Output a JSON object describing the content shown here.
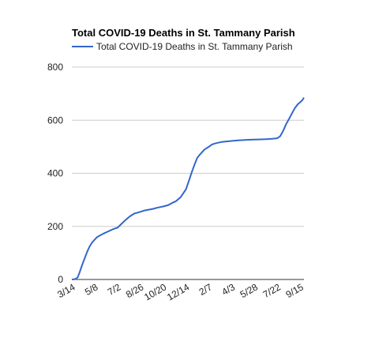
{
  "chart_data": {
    "type": "line",
    "title": "Total COVID-19 Deaths in St. Tammany Parish",
    "xlabel": "",
    "ylabel": "",
    "ylim": [
      0,
      800
    ],
    "yticks": [
      0,
      200,
      400,
      600,
      800
    ],
    "xticks": [
      "3/14",
      "5/8",
      "7/2",
      "8/26",
      "10/20",
      "12/14",
      "2/7",
      "4/3",
      "5/28",
      "7/22",
      "9/15"
    ],
    "grid": true,
    "legend": "top-left",
    "series": [
      {
        "name": "Total COVID-19 Deaths in St. Tammany Parish",
        "color": "#3366cc",
        "x": [
          "3/14",
          "3/20",
          "3/24",
          "3/28",
          "4/2",
          "4/8",
          "4/14",
          "4/20",
          "4/26",
          "5/2",
          "5/8",
          "5/14",
          "5/20",
          "5/26",
          "6/1",
          "6/8",
          "6/15",
          "6/22",
          "7/2",
          "7/12",
          "7/22",
          "8/1",
          "8/11",
          "8/26",
          "9/5",
          "9/15",
          "9/25",
          "10/5",
          "10/20",
          "11/1",
          "11/10",
          "11/20",
          "12/1",
          "12/14",
          "12/21",
          "12/28",
          "1/4",
          "1/10",
          "1/16",
          "1/22",
          "1/28",
          "2/7",
          "2/14",
          "2/21",
          "3/1",
          "3/10",
          "3/20",
          "4/3",
          "4/20",
          "5/10",
          "5/28",
          "6/15",
          "7/1",
          "7/10",
          "7/22",
          "7/29",
          "8/5",
          "8/12",
          "8/19",
          "8/26",
          "9/2",
          "9/9",
          "9/15",
          "9/20",
          "9/24"
        ],
        "values": [
          0,
          1,
          3,
          8,
          28,
          55,
          80,
          105,
          125,
          140,
          150,
          160,
          165,
          170,
          175,
          180,
          185,
          190,
          195,
          210,
          225,
          238,
          248,
          255,
          260,
          263,
          266,
          270,
          275,
          280,
          288,
          295,
          310,
          340,
          372,
          405,
          435,
          458,
          470,
          480,
          490,
          500,
          508,
          512,
          515,
          518,
          520,
          522,
          524,
          526,
          527,
          528,
          529,
          530,
          532,
          540,
          560,
          585,
          605,
          625,
          645,
          660,
          668,
          675,
          685
        ]
      }
    ]
  }
}
